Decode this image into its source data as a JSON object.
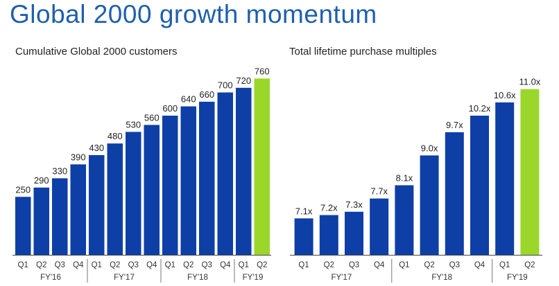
{
  "page_title": "Global 2000 growth momentum",
  "colors": {
    "bar": "#0e3fa7",
    "highlight": "#9bd72a",
    "title": "#1f5fae"
  },
  "chart_data": [
    {
      "type": "bar",
      "title": "Cumulative Global 2000 customers",
      "categories": [
        "Q1",
        "Q2",
        "Q3",
        "Q4",
        "Q1",
        "Q2",
        "Q3",
        "Q4",
        "Q1",
        "Q2",
        "Q3",
        "Q4",
        "Q1",
        "Q2"
      ],
      "groups": [
        {
          "label": "FY'16",
          "count": 4
        },
        {
          "label": "FY'17",
          "count": 4
        },
        {
          "label": "FY'18",
          "count": 4
        },
        {
          "label": "FY'19",
          "count": 2
        }
      ],
      "values": [
        250,
        290,
        330,
        390,
        430,
        480,
        530,
        560,
        600,
        640,
        660,
        700,
        720,
        760
      ],
      "labels": [
        "250",
        "290",
        "330",
        "390",
        "430",
        "480",
        "530",
        "560",
        "600",
        "640",
        "660",
        "700",
        "720",
        "760"
      ],
      "highlight_index": 13,
      "ylim": [
        0,
        800
      ]
    },
    {
      "type": "bar",
      "title": "Total lifetime purchase multiples",
      "categories": [
        "Q1",
        "Q2",
        "Q3",
        "Q4",
        "Q1",
        "Q2",
        "Q3",
        "Q4",
        "Q1",
        "Q2"
      ],
      "groups": [
        {
          "label": "FY'17",
          "count": 4
        },
        {
          "label": "FY'18",
          "count": 4
        },
        {
          "label": "FY'19",
          "count": 2
        }
      ],
      "values": [
        7.1,
        7.2,
        7.3,
        7.7,
        8.1,
        9.0,
        9.7,
        10.2,
        10.6,
        11.0
      ],
      "labels": [
        "7.1x",
        "7.2x",
        "7.3x",
        "7.7x",
        "8.1x",
        "9.0x",
        "9.7x",
        "10.2x",
        "10.6x",
        "11.0x"
      ],
      "highlight_index": 9,
      "ylim": [
        6.0,
        11.6
      ]
    }
  ]
}
